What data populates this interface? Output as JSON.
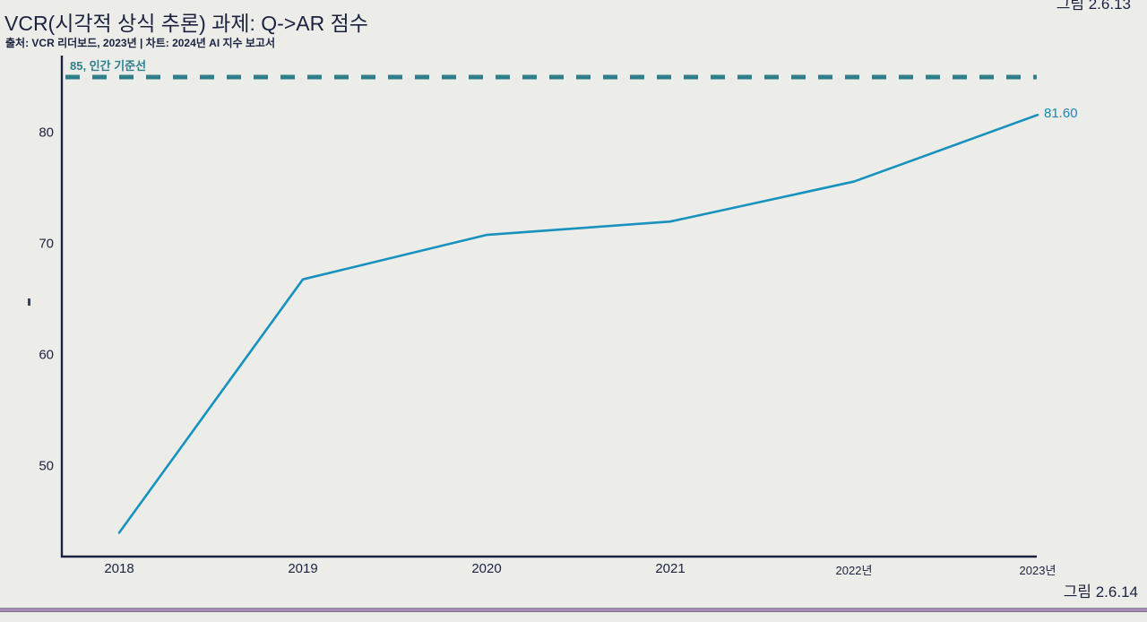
{
  "figure": {
    "caption": "그림 2.6.14",
    "previous_caption_cutoff": "그림 2.6.13"
  },
  "chart_data": {
    "type": "line",
    "title": "VCR(시각적 상식 추론) 과제: Q->AR 점수",
    "subtitle": "출처: VCR 리더보드, 2023년 | 차트: 2024년 AI 지수 보고서",
    "x": [
      2018,
      2019,
      2020,
      2021,
      2022,
      2023
    ],
    "x_tick_labels": [
      "2018",
      "2019",
      "2020",
      "2021",
      "2022년",
      "2023년"
    ],
    "series": [
      {
        "name": "VCR Q->AR 점수",
        "values": [
          44.0,
          66.8,
          70.8,
          72.0,
          75.6,
          81.6
        ]
      }
    ],
    "end_label": "81.60",
    "baseline": {
      "value": 85,
      "label": "85, 인간 기준선"
    },
    "yticks": [
      50,
      60,
      70,
      80
    ],
    "ylim": [
      41.9,
      86.9
    ],
    "grid": false,
    "legend": "none",
    "colors": {
      "line": "#1791be",
      "end_label": "#1886b4",
      "baseline": "#2f7e8c",
      "text": "#1b2240",
      "background": "#ecede8",
      "divider": "#a78bb4"
    }
  }
}
